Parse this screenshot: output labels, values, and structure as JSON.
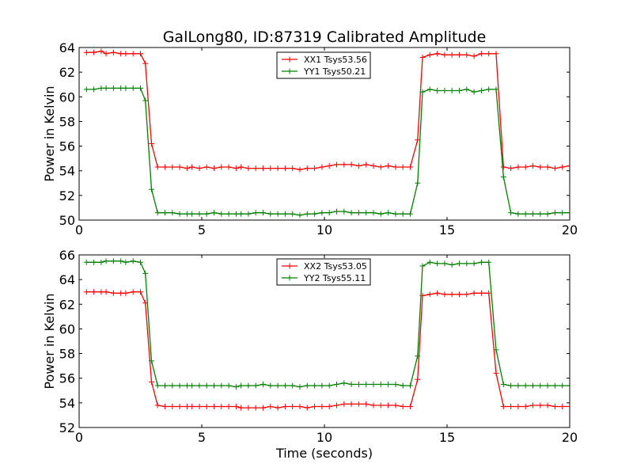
{
  "figure": {
    "title": "GalLong80, ID:87319 Calibrated Amplitude",
    "xlabel": "Time (seconds)"
  },
  "chart_data": [
    {
      "type": "line",
      "title": "GalLong80, ID:87319 Calibrated Amplitude",
      "xlabel": "",
      "ylabel": "Power in Kelvin",
      "xlim": [
        0,
        20
      ],
      "ylim": [
        50,
        64
      ],
      "xticks": [
        0,
        5,
        10,
        15,
        20
      ],
      "yticks": [
        50,
        52,
        54,
        56,
        58,
        60,
        62,
        64
      ],
      "grid": false,
      "legend_position": "top-center",
      "x": [
        0.3,
        0.6,
        0.9,
        1.1,
        1.4,
        1.7,
        1.9,
        2.2,
        2.5,
        2.7,
        2.95,
        3.2,
        3.5,
        3.8,
        4.1,
        4.4,
        4.6,
        4.9,
        5.2,
        5.5,
        5.8,
        6.1,
        6.4,
        6.6,
        6.9,
        7.2,
        7.5,
        7.8,
        8.1,
        8.4,
        8.7,
        9.0,
        9.3,
        9.6,
        9.9,
        10.2,
        10.5,
        10.8,
        11.1,
        11.4,
        11.7,
        12.0,
        12.3,
        12.6,
        12.9,
        13.2,
        13.5,
        13.8,
        14.0,
        14.3,
        14.6,
        14.9,
        15.2,
        15.5,
        15.8,
        16.1,
        16.4,
        16.7,
        17.0,
        17.3,
        17.6,
        17.9,
        18.2,
        18.5,
        18.8,
        19.1,
        19.4,
        19.7,
        20.0
      ],
      "series": [
        {
          "name": "XX1 Tsys53.56",
          "color": "#ff0000",
          "values": [
            63.6,
            63.6,
            63.7,
            63.5,
            63.6,
            63.5,
            63.5,
            63.5,
            63.5,
            62.7,
            56.2,
            54.3,
            54.3,
            54.3,
            54.3,
            54.2,
            54.3,
            54.2,
            54.3,
            54.2,
            54.3,
            54.3,
            54.2,
            54.3,
            54.2,
            54.2,
            54.2,
            54.2,
            54.2,
            54.2,
            54.2,
            54.1,
            54.2,
            54.2,
            54.3,
            54.4,
            54.5,
            54.5,
            54.5,
            54.4,
            54.5,
            54.4,
            54.3,
            54.4,
            54.3,
            54.3,
            54.3,
            56.5,
            63.2,
            63.4,
            63.5,
            63.4,
            63.4,
            63.4,
            63.4,
            63.3,
            63.5,
            63.5,
            63.5,
            54.3,
            54.2,
            54.3,
            54.3,
            54.4,
            54.3,
            54.3,
            54.2,
            54.3,
            54.4
          ]
        },
        {
          "name": "YY1 Tsys50.21",
          "color": "#008000",
          "values": [
            60.6,
            60.6,
            60.7,
            60.7,
            60.7,
            60.7,
            60.7,
            60.7,
            60.7,
            59.7,
            52.5,
            50.6,
            50.6,
            50.6,
            50.5,
            50.5,
            50.5,
            50.5,
            50.5,
            50.6,
            50.5,
            50.5,
            50.5,
            50.5,
            50.5,
            50.6,
            50.6,
            50.5,
            50.5,
            50.5,
            50.5,
            50.4,
            50.5,
            50.5,
            50.6,
            50.6,
            50.7,
            50.7,
            50.6,
            50.6,
            50.6,
            50.6,
            50.5,
            50.6,
            50.5,
            50.5,
            50.5,
            53.0,
            60.4,
            60.6,
            60.5,
            60.5,
            60.5,
            60.5,
            60.6,
            60.4,
            60.5,
            60.6,
            60.6,
            53.5,
            50.6,
            50.5,
            50.5,
            50.5,
            50.5,
            50.5,
            50.6,
            50.6,
            50.6
          ]
        }
      ]
    },
    {
      "type": "line",
      "title": "",
      "xlabel": "Time (seconds)",
      "ylabel": "Power in Kelvin",
      "xlim": [
        0,
        20
      ],
      "ylim": [
        52,
        66
      ],
      "xticks": [
        0,
        5,
        10,
        15,
        20
      ],
      "yticks": [
        52,
        54,
        56,
        58,
        60,
        62,
        64,
        66
      ],
      "grid": false,
      "legend_position": "top-center",
      "x": [
        0.3,
        0.6,
        0.9,
        1.1,
        1.4,
        1.7,
        1.9,
        2.2,
        2.5,
        2.7,
        2.95,
        3.2,
        3.5,
        3.8,
        4.1,
        4.4,
        4.6,
        4.9,
        5.2,
        5.5,
        5.8,
        6.1,
        6.4,
        6.6,
        6.9,
        7.2,
        7.5,
        7.8,
        8.1,
        8.4,
        8.7,
        9.0,
        9.3,
        9.6,
        9.9,
        10.2,
        10.5,
        10.8,
        11.1,
        11.4,
        11.7,
        12.0,
        12.3,
        12.6,
        12.9,
        13.2,
        13.5,
        13.8,
        14.0,
        14.3,
        14.6,
        14.9,
        15.2,
        15.5,
        15.8,
        16.1,
        16.4,
        16.7,
        17.0,
        17.3,
        17.6,
        17.9,
        18.2,
        18.5,
        18.8,
        19.1,
        19.4,
        19.7,
        20.0
      ],
      "series": [
        {
          "name": "XX2 Tsys53.05",
          "color": "#ff0000",
          "values": [
            63.0,
            63.0,
            63.0,
            63.0,
            62.9,
            62.9,
            62.9,
            63.0,
            63.0,
            62.1,
            55.7,
            53.8,
            53.7,
            53.7,
            53.7,
            53.7,
            53.7,
            53.7,
            53.7,
            53.7,
            53.7,
            53.7,
            53.7,
            53.6,
            53.6,
            53.6,
            53.6,
            53.7,
            53.6,
            53.7,
            53.7,
            53.7,
            53.6,
            53.7,
            53.7,
            53.7,
            53.8,
            53.9,
            53.9,
            53.9,
            53.9,
            53.8,
            53.8,
            53.8,
            53.8,
            53.7,
            53.7,
            55.9,
            62.7,
            62.8,
            62.9,
            62.8,
            62.8,
            62.8,
            62.8,
            62.9,
            62.9,
            62.9,
            56.4,
            53.7,
            53.7,
            53.7,
            53.7,
            53.8,
            53.8,
            53.8,
            53.7,
            53.7,
            53.7
          ]
        },
        {
          "name": "YY2 Tsys55.11",
          "color": "#008000",
          "values": [
            65.4,
            65.4,
            65.4,
            65.5,
            65.5,
            65.5,
            65.4,
            65.5,
            65.4,
            64.5,
            57.4,
            55.4,
            55.4,
            55.4,
            55.4,
            55.4,
            55.4,
            55.4,
            55.4,
            55.4,
            55.4,
            55.4,
            55.3,
            55.4,
            55.4,
            55.4,
            55.5,
            55.4,
            55.4,
            55.4,
            55.4,
            55.3,
            55.4,
            55.4,
            55.4,
            55.4,
            55.5,
            55.6,
            55.5,
            55.5,
            55.5,
            55.5,
            55.5,
            55.5,
            55.5,
            55.4,
            55.4,
            57.8,
            65.1,
            65.4,
            65.3,
            65.3,
            65.2,
            65.3,
            65.3,
            65.3,
            65.4,
            65.4,
            58.3,
            55.5,
            55.4,
            55.4,
            55.4,
            55.4,
            55.4,
            55.4,
            55.4,
            55.4,
            55.4
          ]
        }
      ]
    }
  ]
}
